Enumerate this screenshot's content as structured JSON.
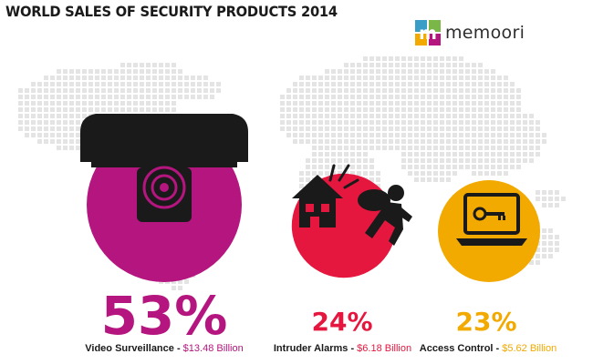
{
  "title": "WORLD SALES OF SECURITY PRODUCTS 2014",
  "logo": {
    "text": "memoori"
  },
  "colors": {
    "video": "#b5157f",
    "intruder": "#e5173f",
    "access": "#f2a900",
    "map": "#e4e4e4",
    "ink": "#1a1a1a"
  },
  "chart_data": {
    "type": "pie",
    "title": "WORLD SALES OF SECURITY PRODUCTS 2014",
    "categories": [
      "Video Surveillance",
      "Intruder Alarms",
      "Access Control"
    ],
    "values": [
      53,
      24,
      23
    ],
    "unit": "%",
    "sales_billion_usd": [
      13.48,
      6.18,
      5.62
    ],
    "segments": [
      {
        "pct": "53%",
        "label": "Video Surveillance",
        "sep": " - ",
        "value": "$13.48 Billion",
        "icon": "security-camera-icon"
      },
      {
        "pct": "24%",
        "label": "Intruder Alarms",
        "sep": " - ",
        "value": "$6.18 Billion",
        "icon": "burglar-house-icon"
      },
      {
        "pct": "23%",
        "label": "Access Control",
        "sep": " - ",
        "value": "$5.62 Billion",
        "icon": "laptop-key-icon"
      }
    ]
  }
}
